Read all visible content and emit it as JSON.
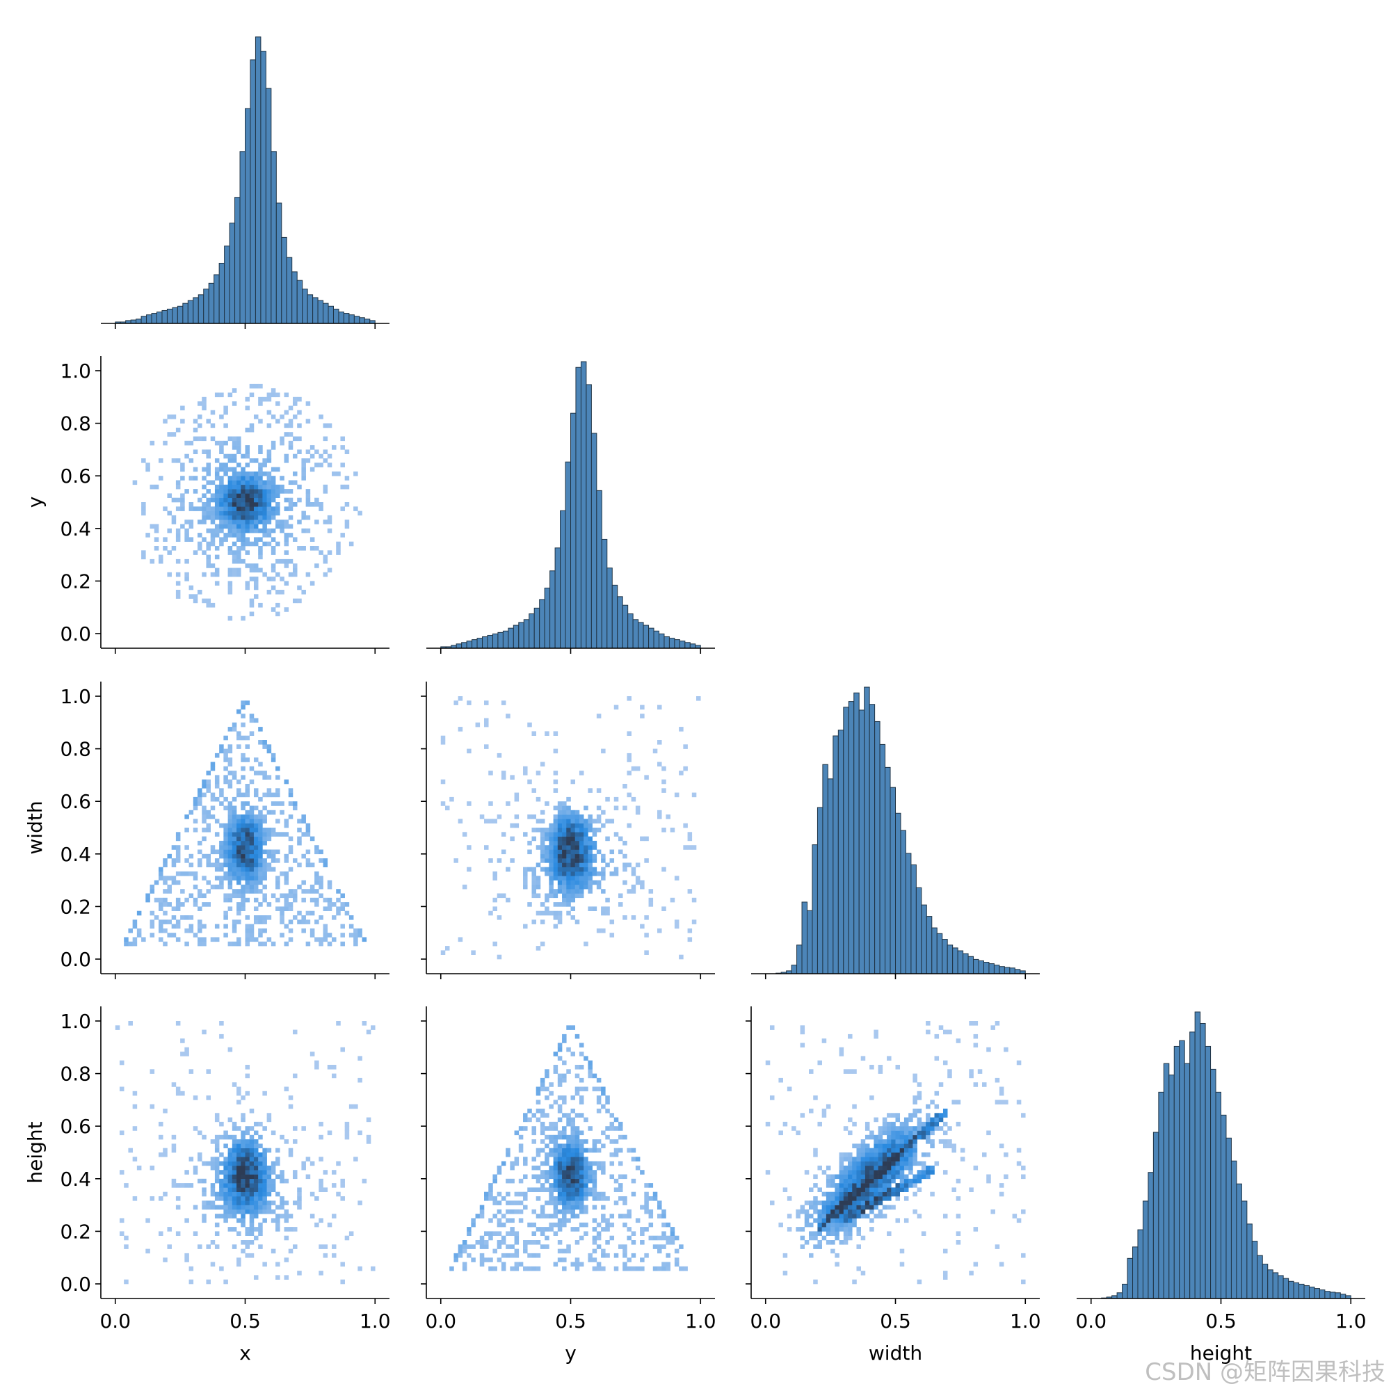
{
  "chart_data": {
    "type": "pairplot",
    "variables": [
      "x",
      "y",
      "width",
      "height"
    ],
    "axis_range": [
      0,
      1
    ],
    "x_ticks": [
      "0.0",
      "0.5",
      "1.0"
    ],
    "y_ticks": [
      "0.0",
      "0.2",
      "0.4",
      "0.6",
      "0.8",
      "1.0"
    ],
    "histogram_bins": 50,
    "histograms": {
      "x": {
        "shape": "sharp peak",
        "peak_x": 0.5,
        "relative_counts": [
          0.5,
          0.5,
          1,
          1.2,
          1.5,
          2.5,
          3,
          3.5,
          4,
          4.5,
          5,
          5.5,
          6,
          7,
          8,
          9,
          10,
          12,
          14,
          17,
          21,
          27,
          35,
          44,
          60,
          75,
          92,
          100,
          95,
          82,
          60,
          42,
          30,
          23,
          18,
          15,
          12,
          10,
          9,
          8,
          7,
          6,
          5,
          4,
          3.5,
          3,
          2.5,
          2,
          1.5,
          1
        ]
      },
      "y": {
        "shape": "sharp peak",
        "peak_x": 0.5,
        "relative_counts": [
          0.5,
          0.5,
          1,
          1.5,
          2,
          2.5,
          3,
          3.5,
          4,
          4.5,
          5,
          5.5,
          6,
          7,
          8,
          9,
          10,
          12,
          14,
          17,
          21,
          27,
          35,
          48,
          65,
          82,
          98,
          100,
          92,
          75,
          55,
          38,
          28,
          22,
          18,
          15,
          12,
          10,
          9,
          8,
          7,
          6,
          5,
          4,
          3.5,
          3,
          2.5,
          2,
          1.5,
          1
        ]
      },
      "width": {
        "shape": "right skewed",
        "peak_x": 0.4,
        "relative_counts": [
          0,
          0,
          0.2,
          0.5,
          1,
          3,
          10,
          25,
          22,
          45,
          58,
          73,
          68,
          83,
          85,
          93,
          95,
          98,
          92,
          100,
          94,
          88,
          80,
          72,
          65,
          56,
          50,
          42,
          38,
          30,
          24,
          20,
          16,
          14,
          12,
          10,
          9,
          8,
          7,
          6,
          5,
          4.5,
          4,
          3.5,
          3,
          2.5,
          2.2,
          2,
          1.5,
          1
        ]
      },
      "height": {
        "shape": "right skewed",
        "peak_x": 0.41,
        "relative_counts": [
          0,
          0,
          0.2,
          0.5,
          1,
          2,
          5,
          14,
          18,
          24,
          34,
          44,
          58,
          72,
          82,
          78,
          88,
          90,
          82,
          93,
          100,
          96,
          88,
          80,
          72,
          64,
          56,
          48,
          40,
          34,
          26,
          20,
          15,
          12,
          10,
          9,
          8,
          7,
          6,
          5.5,
          5,
          4.5,
          4,
          3.5,
          3,
          2.5,
          2.2,
          2,
          1.5,
          1
        ]
      }
    },
    "bivariate_histograms": [
      {
        "x": "x",
        "y": "y",
        "shape": "circular blob",
        "center": [
          0.5,
          0.5
        ]
      },
      {
        "x": "x",
        "y": "width",
        "shape": "triangle",
        "apex": [
          0.5,
          1.0
        ],
        "center": [
          0.5,
          0.42
        ]
      },
      {
        "x": "y",
        "y": "width",
        "shape": "blob",
        "center": [
          0.5,
          0.42
        ]
      },
      {
        "x": "x",
        "y": "height",
        "shape": "blob",
        "center": [
          0.5,
          0.42
        ]
      },
      {
        "x": "y",
        "y": "height",
        "shape": "triangle",
        "apex": [
          0.5,
          1.0
        ],
        "center": [
          0.5,
          0.42
        ]
      },
      {
        "x": "width",
        "y": "height",
        "shape": "positive correlation",
        "center": [
          0.4,
          0.4
        ]
      }
    ],
    "colors": {
      "bar_fill": "#4c85b8",
      "bar_edge": "#1f3344",
      "heat_light": "#a9c8ef",
      "heat_mid": "#2a8ae0",
      "heat_dark": "#2d3c55"
    }
  },
  "watermark": "CSDN @矩阵因果科技"
}
